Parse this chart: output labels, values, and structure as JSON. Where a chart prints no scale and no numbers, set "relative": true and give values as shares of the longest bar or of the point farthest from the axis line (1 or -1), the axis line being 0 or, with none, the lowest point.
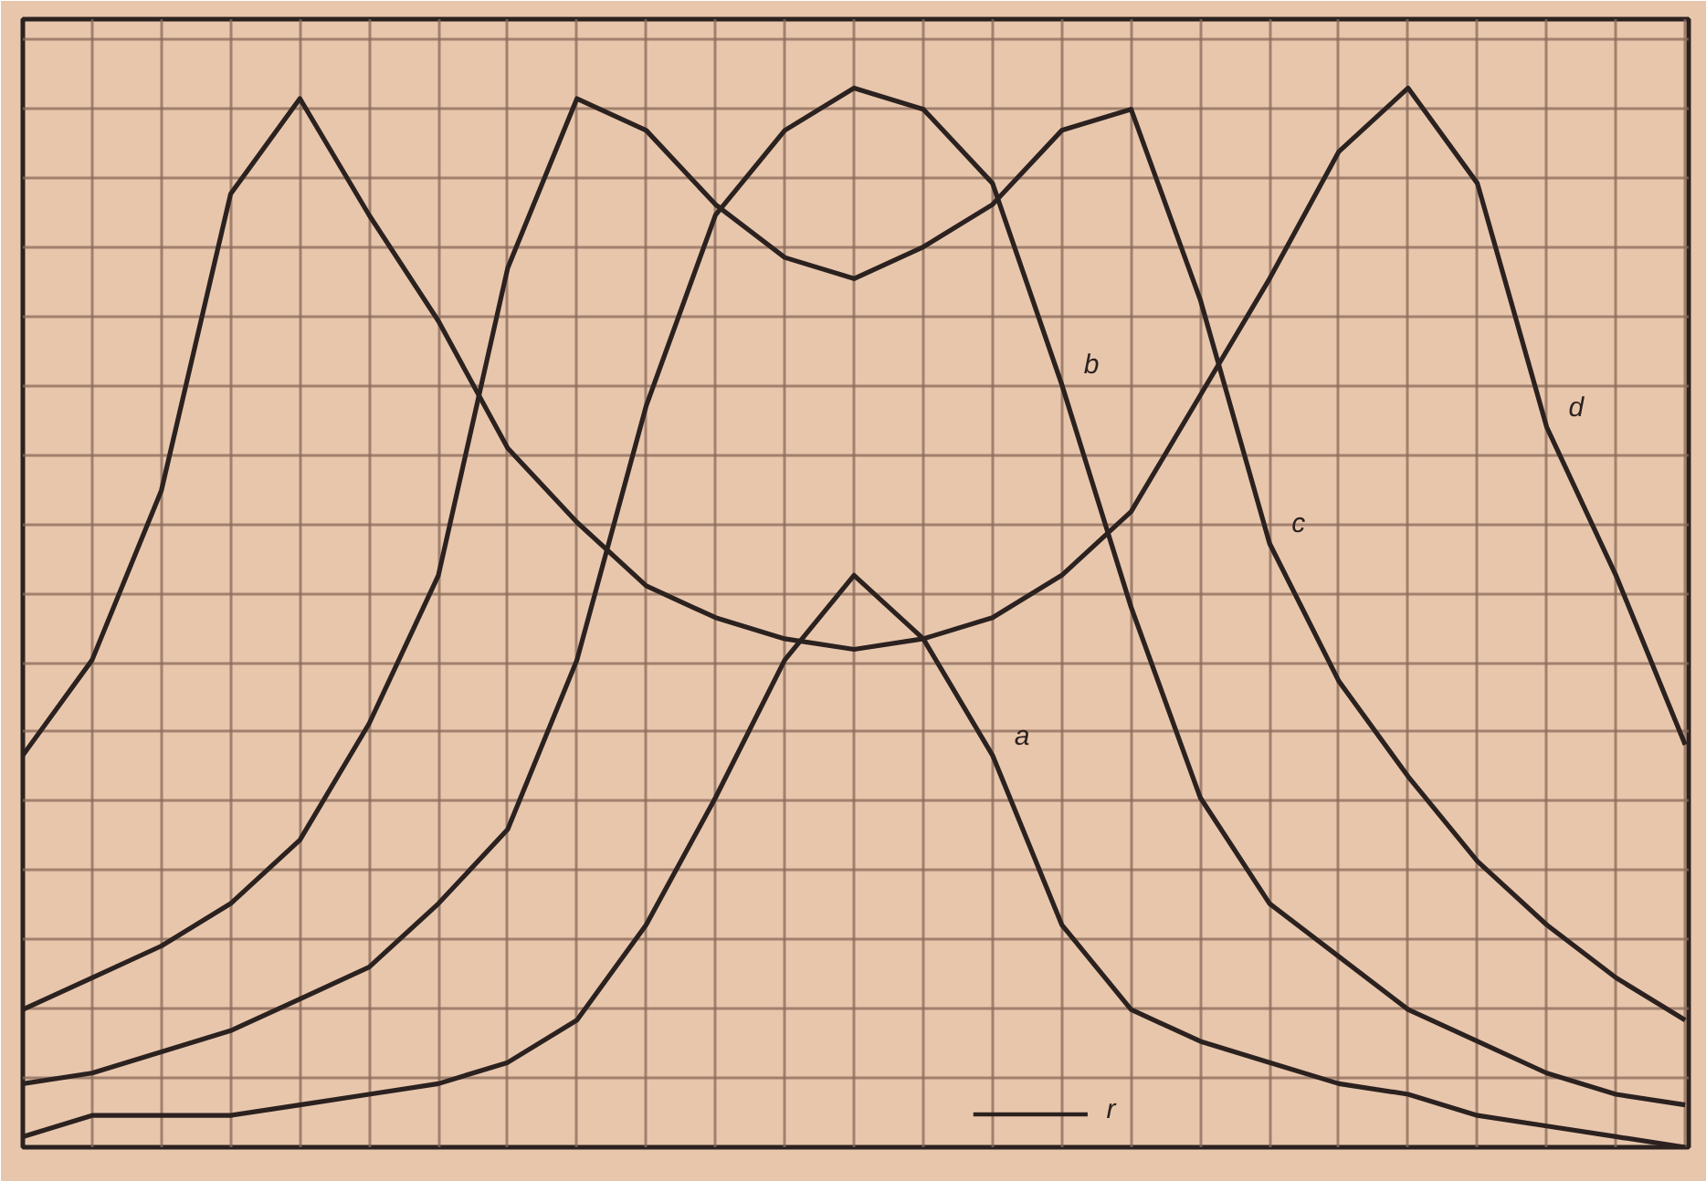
{
  "chart_data": {
    "type": "line",
    "relative": true,
    "grid": true,
    "marker": "none",
    "line_style": "solid",
    "categories": [
      null,
      null,
      null,
      null,
      null,
      null,
      null,
      null,
      null,
      null,
      null,
      null,
      null,
      null,
      null,
      null,
      null,
      null,
      null,
      null,
      null,
      null,
      null,
      null,
      null
    ],
    "series": [
      {
        "name": "a",
        "color": "#2b2220",
        "values": [
          0.01,
          0.03,
          0.03,
          0.03,
          0.04,
          0.05,
          0.06,
          0.08,
          0.12,
          0.21,
          0.33,
          0.46,
          0.54,
          0.48,
          0.37,
          0.21,
          0.13,
          0.1,
          0.08,
          0.06,
          0.05,
          0.03,
          0.02,
          0.01,
          0.0
        ]
      },
      {
        "name": "b",
        "color": "#2b2220",
        "values": [
          0.06,
          0.07,
          0.09,
          0.11,
          0.14,
          0.17,
          0.23,
          0.3,
          0.46,
          0.7,
          0.88,
          0.96,
          1.0,
          0.98,
          0.91,
          0.72,
          0.51,
          0.33,
          0.23,
          0.18,
          0.13,
          0.1,
          0.07,
          0.05,
          0.04
        ]
      },
      {
        "name": "c",
        "color": "#2b2220",
        "values": [
          0.13,
          0.16,
          0.19,
          0.23,
          0.29,
          0.4,
          0.54,
          0.83,
          0.99,
          0.96,
          0.89,
          0.84,
          0.82,
          0.85,
          0.89,
          0.96,
          0.98,
          0.8,
          0.57,
          0.44,
          0.35,
          0.27,
          0.21,
          0.16,
          0.12
        ]
      },
      {
        "name": "d",
        "color": "#2b2220",
        "values": [
          0.37,
          0.46,
          0.62,
          0.9,
          0.99,
          0.88,
          0.78,
          0.66,
          0.59,
          0.53,
          0.5,
          0.48,
          0.47,
          0.48,
          0.5,
          0.54,
          0.6,
          0.71,
          0.82,
          0.94,
          1.0,
          0.91,
          0.68,
          0.54,
          0.38
        ]
      }
    ],
    "annotations": [
      "r"
    ]
  }
}
